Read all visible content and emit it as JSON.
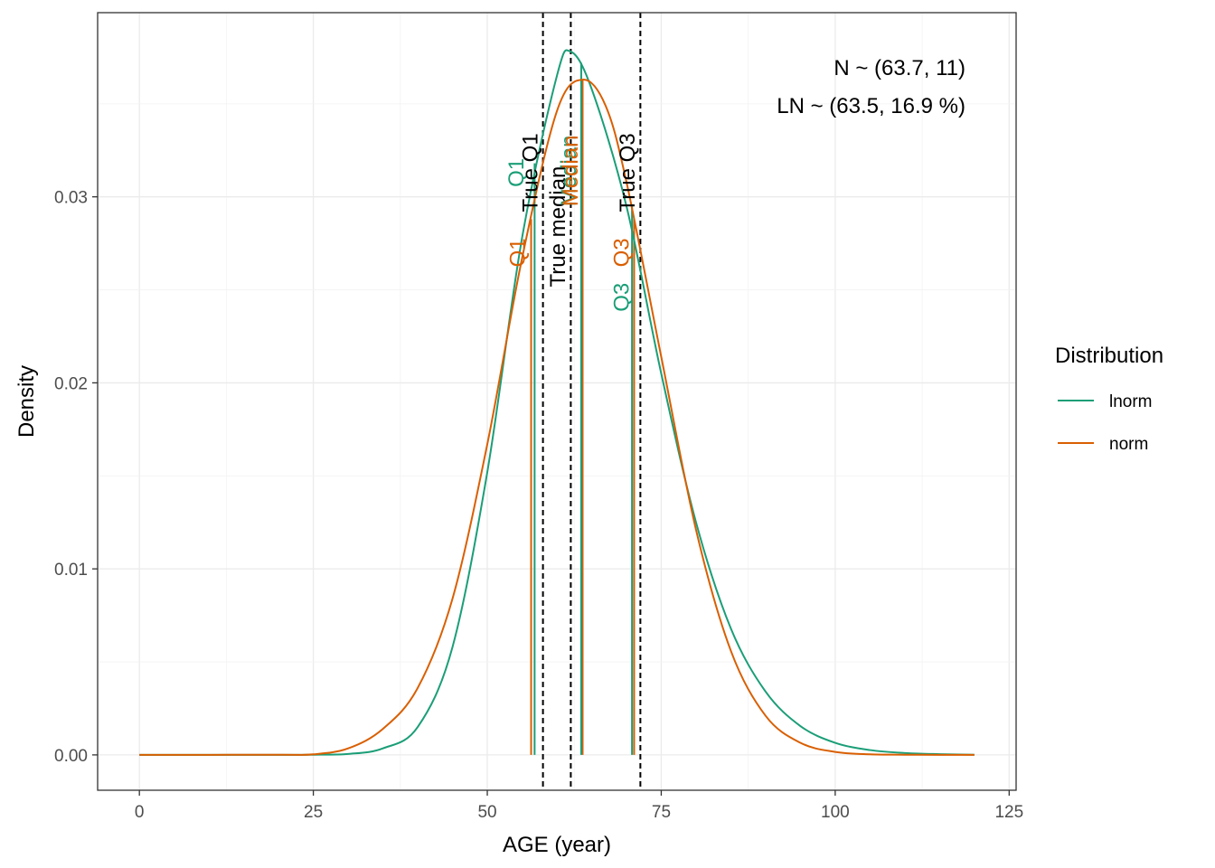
{
  "chart_data": {
    "type": "line",
    "title": "",
    "xlabel": "AGE (year)",
    "ylabel": "Density",
    "xlim": [
      -6,
      126
    ],
    "ylim": [
      -0.0019,
      0.0399
    ],
    "x_ticks": [
      0,
      25,
      50,
      75,
      100,
      125
    ],
    "x_tick_labels": [
      "0",
      "25",
      "50",
      "75",
      "100",
      "125"
    ],
    "y_ticks": [
      0.0,
      0.01,
      0.02,
      0.03
    ],
    "y_tick_labels": [
      "0.00",
      "0.01",
      "0.02",
      "0.03"
    ],
    "grid": true,
    "legend": {
      "title": "Distribution",
      "placement": "right",
      "entries": [
        "lnorm",
        "norm"
      ]
    },
    "series": [
      {
        "name": "lnorm",
        "color": "#1b9e77",
        "x": [
          0,
          20,
          25,
          30,
          35,
          40,
          45,
          50,
          55,
          60,
          62,
          65,
          70,
          75,
          80,
          85,
          90,
          95,
          100,
          105,
          110,
          115,
          120
        ],
        "y": [
          0,
          0,
          1e-05,
          5e-05,
          0.00035,
          0.0015,
          0.0058,
          0.0152,
          0.0278,
          0.0365,
          0.0378,
          0.0358,
          0.0295,
          0.0205,
          0.0125,
          0.0068,
          0.0034,
          0.00155,
          0.00065,
          0.00026,
          0.0001,
          4e-05,
          1e-05
        ]
      },
      {
        "name": "norm",
        "color": "#d95f02",
        "x": [
          0,
          20,
          25,
          30,
          35,
          40,
          45,
          50,
          55,
          60,
          63.7,
          67,
          70,
          75,
          80,
          85,
          90,
          95,
          100,
          105,
          110,
          115,
          120
        ],
        "y": [
          0,
          1e-05,
          3e-05,
          0.00035,
          0.0014,
          0.0036,
          0.0084,
          0.0167,
          0.0267,
          0.0346,
          0.0363,
          0.0349,
          0.0308,
          0.0214,
          0.0121,
          0.0056,
          0.0021,
          0.00065,
          0.00016,
          3e-05,
          1e-05,
          0,
          0
        ]
      }
    ],
    "vertical_markers": [
      {
        "label": "Q1",
        "x": 56.3,
        "y_top": 0.0288,
        "color": "#d95f02",
        "style": "solid"
      },
      {
        "label": "Median",
        "x": 63.7,
        "y_top": 0.0363,
        "color": "#d95f02",
        "style": "solid"
      },
      {
        "label": "Q3",
        "x": 71.1,
        "y_top": 0.0288,
        "color": "#d95f02",
        "style": "solid"
      },
      {
        "label": "Q1",
        "x": 56.8,
        "y_top": 0.0318,
        "color": "#1b9e77",
        "style": "solid"
      },
      {
        "label": "Median",
        "x": 63.5,
        "y_top": 0.0372,
        "color": "#1b9e77",
        "style": "solid"
      },
      {
        "label": "Q3",
        "x": 70.8,
        "y_top": 0.0296,
        "color": "#1b9e77",
        "style": "solid"
      },
      {
        "label": "True Q1",
        "x": 58,
        "color": "#000000",
        "style": "dashed"
      },
      {
        "label": "True median",
        "x": 62,
        "color": "#000000",
        "style": "dashed"
      },
      {
        "label": "True Q3",
        "x": 72,
        "color": "#000000",
        "style": "dashed"
      }
    ],
    "annotations": [
      {
        "text": "Q1",
        "x": 55.2,
        "y": 0.0313,
        "color": "#1b9e77"
      },
      {
        "text": "True Q1",
        "x": 57.2,
        "y": 0.0313,
        "color": "#000000"
      },
      {
        "text": "True median",
        "x": 61.2,
        "y": 0.0284,
        "color": "#000000"
      },
      {
        "text": "Median",
        "x": 62.7,
        "y": 0.0314,
        "color": "#1b9e77"
      },
      {
        "text": "Median",
        "x": 63.0,
        "y": 0.0314,
        "color": "#d95f02"
      },
      {
        "text": "True Q3",
        "x": 71.2,
        "y": 0.0313,
        "color": "#000000"
      },
      {
        "text": "Q1",
        "x": 55.4,
        "y": 0.027,
        "color": "#d95f02"
      },
      {
        "text": "Q3",
        "x": 70.3,
        "y": 0.027,
        "color": "#d95f02"
      },
      {
        "text": "Q3",
        "x": 70.3,
        "y": 0.0246,
        "color": "#1b9e77"
      }
    ],
    "stats": [
      "N ~ (63.7, 11)",
      "LN ~ (63.5, 16.9 %)"
    ]
  }
}
